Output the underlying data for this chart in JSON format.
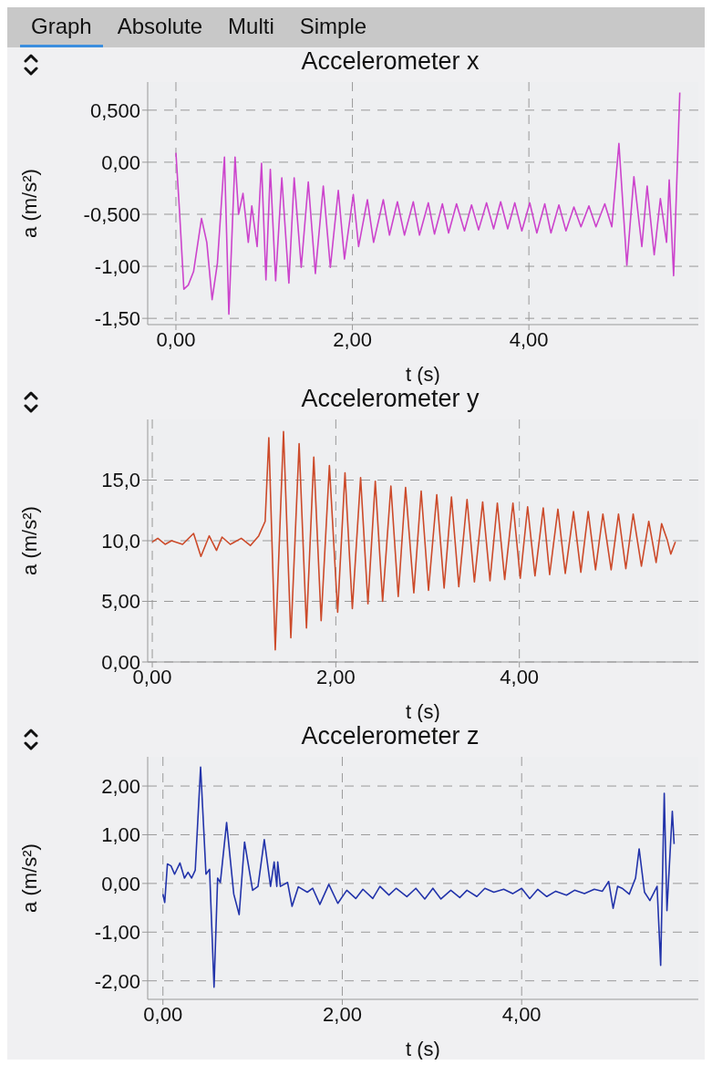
{
  "chart_data": [
    {
      "type": "line",
      "title": "Accelerometer x",
      "xlabel": "t (s)",
      "ylabel": "a (m/s²)",
      "annotations": [
        "Graph",
        "Absolute",
        "Multi",
        "Simple"
      ],
      "x": [
        0,
        0.04,
        0.09,
        0.14,
        0.2,
        0.29,
        0.35,
        0.41,
        0.47,
        0.55,
        0.6,
        0.67,
        0.71,
        0.76,
        0.82,
        0.86,
        0.92,
        0.97,
        1.02,
        1.07,
        1.13,
        1.2,
        1.28,
        1.34,
        1.42,
        1.5,
        1.58,
        1.67,
        1.75,
        1.84,
        1.91,
        2.01,
        2.07,
        2.17,
        2.24,
        2.35,
        2.42,
        2.51,
        2.59,
        2.69,
        2.76,
        2.86,
        2.93,
        3.02,
        3.09,
        3.18,
        3.27,
        3.35,
        3.43,
        3.52,
        3.6,
        3.68,
        3.76,
        3.84,
        3.92,
        4.01,
        4.09,
        4.18,
        4.25,
        4.34,
        4.42,
        4.51,
        4.59,
        4.68,
        4.76,
        4.86,
        4.94,
        5.02,
        5.11,
        5.19,
        5.28,
        5.34,
        5.42,
        5.49,
        5.56,
        5.59,
        5.64,
        5.71
      ],
      "series": [
        {
          "color": "#cc44cc",
          "values": [
            0.09,
            -0.46,
            -1.22,
            -1.18,
            -1.05,
            -0.54,
            -0.77,
            -1.32,
            -0.97,
            0.05,
            -1.46,
            0.05,
            -0.5,
            -0.3,
            -0.77,
            -0.42,
            -0.81,
            -0.01,
            -1.13,
            -0.07,
            -1.14,
            -0.15,
            -1.16,
            -0.15,
            -1.01,
            -0.19,
            -1.07,
            -0.23,
            -1.01,
            -0.27,
            -0.93,
            -0.31,
            -0.81,
            -0.36,
            -0.77,
            -0.36,
            -0.7,
            -0.38,
            -0.7,
            -0.38,
            -0.7,
            -0.39,
            -0.69,
            -0.4,
            -0.68,
            -0.4,
            -0.66,
            -0.41,
            -0.65,
            -0.39,
            -0.64,
            -0.38,
            -0.64,
            -0.39,
            -0.66,
            -0.39,
            -0.68,
            -0.4,
            -0.68,
            -0.41,
            -0.66,
            -0.43,
            -0.62,
            -0.42,
            -0.62,
            -0.4,
            -0.62,
            0.18,
            -0.99,
            -0.14,
            -0.81,
            -0.23,
            -0.89,
            -0.35,
            -0.77,
            -0.17,
            -1.09,
            0.67
          ]
        }
      ],
      "xlim": [
        -0.32,
        5.92
      ],
      "xticks": [
        {
          "value": 0,
          "label": "0,00"
        },
        {
          "value": 2,
          "label": "2,00"
        },
        {
          "value": 4,
          "label": "4,00"
        }
      ],
      "ylim": [
        -1.56,
        0.77
      ],
      "yticks": [
        {
          "value": -1.5,
          "label": "-1,50"
        },
        {
          "value": -1,
          "label": "-1,00"
        },
        {
          "value": -0.5,
          "label": "-0,500"
        },
        {
          "value": 0,
          "label": "0,00"
        },
        {
          "value": 0.5,
          "label": "0,500"
        }
      ],
      "grid": true
    },
    {
      "type": "line",
      "title": "Accelerometer y",
      "xlabel": "t (s)",
      "ylabel": "a (m/s²)",
      "x": [
        0,
        0.06,
        0.14,
        0.21,
        0.33,
        0.45,
        0.53,
        0.62,
        0.7,
        0.76,
        0.85,
        0.97,
        1.07,
        1.16,
        1.23,
        1.27,
        1.34,
        1.43,
        1.51,
        1.6,
        1.68,
        1.76,
        1.84,
        1.93,
        2.02,
        2.1,
        2.18,
        2.27,
        2.35,
        2.43,
        2.51,
        2.6,
        2.68,
        2.76,
        2.85,
        2.93,
        3.01,
        3.1,
        3.18,
        3.26,
        3.34,
        3.43,
        3.51,
        3.6,
        3.68,
        3.76,
        3.84,
        3.93,
        4.01,
        4.09,
        4.17,
        4.26,
        4.33,
        4.42,
        4.5,
        4.59,
        4.67,
        4.75,
        4.83,
        4.91,
        5.0,
        5.08,
        5.16,
        5.24,
        5.33,
        5.41,
        5.49,
        5.55,
        5.61,
        5.65,
        5.7
      ],
      "series": [
        {
          "color": "#cc4a2a",
          "values": [
            9.9,
            10.2,
            9.7,
            10.0,
            9.7,
            10.6,
            8.7,
            10.4,
            9.2,
            10.3,
            9.7,
            10.2,
            9.6,
            10.4,
            11.6,
            18.5,
            1.0,
            19.0,
            2.0,
            18.0,
            2.8,
            16.9,
            3.4,
            16.2,
            4.1,
            15.6,
            4.4,
            15.2,
            4.8,
            14.9,
            5.0,
            14.5,
            5.4,
            14.4,
            5.7,
            14.1,
            5.9,
            13.8,
            6.1,
            13.6,
            6.2,
            13.4,
            6.6,
            13.2,
            6.7,
            13.1,
            6.8,
            13.1,
            6.9,
            12.8,
            7.1,
            12.7,
            7.2,
            12.6,
            7.3,
            12.4,
            7.4,
            12.4,
            7.6,
            12.2,
            7.6,
            12.2,
            7.7,
            12.2,
            7.9,
            11.6,
            8.2,
            11.4,
            10.1,
            8.9,
            9.9
          ]
        }
      ],
      "xlim": [
        -0.05,
        5.95
      ],
      "xticks": [
        {
          "value": 0,
          "label": "0,00"
        },
        {
          "value": 2,
          "label": "2,00"
        },
        {
          "value": 4,
          "label": "4,00"
        }
      ],
      "ylim": [
        0,
        20
      ],
      "yticks": [
        {
          "value": 0,
          "label": "0,00"
        },
        {
          "value": 5,
          "label": "5,00"
        },
        {
          "value": 10,
          "label": "10,0"
        },
        {
          "value": 15,
          "label": "15,0"
        }
      ],
      "grid": true
    },
    {
      "type": "line",
      "title": "Accelerometer z",
      "xlabel": "t (s)",
      "ylabel": "a (m/s²)",
      "x": [
        0,
        0.02,
        0.05,
        0.09,
        0.13,
        0.19,
        0.24,
        0.28,
        0.32,
        0.36,
        0.42,
        0.48,
        0.52,
        0.57,
        0.61,
        0.64,
        0.71,
        0.79,
        0.85,
        0.91,
        1.0,
        1.06,
        1.13,
        1.2,
        1.24,
        1.27,
        1.28,
        1.31,
        1.39,
        1.44,
        1.51,
        1.61,
        1.67,
        1.75,
        1.85,
        1.95,
        2.05,
        2.15,
        2.23,
        2.34,
        2.42,
        2.52,
        2.6,
        2.72,
        2.82,
        2.92,
        3.01,
        3.1,
        3.21,
        3.31,
        3.39,
        3.5,
        3.59,
        3.69,
        3.8,
        3.9,
        4.0,
        4.09,
        4.18,
        4.28,
        4.38,
        4.5,
        4.59,
        4.7,
        4.81,
        4.9,
        4.97,
        5.02,
        5.07,
        5.12,
        5.2,
        5.27,
        5.31,
        5.37,
        5.43,
        5.51,
        5.55,
        5.59,
        5.62,
        5.68,
        5.7
      ],
      "series": [
        {
          "color": "#2233aa",
          "values": [
            -0.22,
            -0.39,
            0.4,
            0.36,
            0.19,
            0.42,
            0.11,
            0.23,
            0.11,
            0.27,
            2.39,
            0.19,
            0.29,
            -2.13,
            0.11,
            0.02,
            1.25,
            -0.22,
            -0.64,
            0.85,
            -0.14,
            -0.06,
            0.9,
            -0.06,
            0.44,
            -0.06,
            0.44,
            -0.06,
            0.02,
            -0.47,
            -0.07,
            -0.18,
            -0.1,
            -0.43,
            -0.02,
            -0.41,
            -0.14,
            -0.31,
            -0.12,
            -0.31,
            -0.06,
            -0.24,
            -0.1,
            -0.27,
            -0.1,
            -0.32,
            -0.1,
            -0.32,
            -0.14,
            -0.29,
            -0.14,
            -0.27,
            -0.1,
            -0.18,
            -0.12,
            -0.21,
            -0.1,
            -0.31,
            -0.12,
            -0.27,
            -0.16,
            -0.24,
            -0.14,
            -0.21,
            -0.12,
            -0.16,
            0.04,
            -0.51,
            -0.06,
            -0.1,
            -0.22,
            0.11,
            0.71,
            -0.18,
            -0.35,
            -0.06,
            -1.68,
            1.85,
            -0.56,
            1.48,
            0.81
          ]
        }
      ],
      "xlim": [
        -0.17,
        5.97
      ],
      "xticks": [
        {
          "value": 0,
          "label": "0,00"
        },
        {
          "value": 2,
          "label": "2,00"
        },
        {
          "value": 4,
          "label": "4,00"
        }
      ],
      "ylim": [
        -2.38,
        2.6
      ],
      "yticks": [
        {
          "value": -2,
          "label": "-2,00"
        },
        {
          "value": -1,
          "label": "-1,00"
        },
        {
          "value": 0,
          "label": "0,00"
        },
        {
          "value": 1,
          "label": "1,00"
        },
        {
          "value": 2,
          "label": "2,00"
        }
      ],
      "grid": true
    }
  ]
}
